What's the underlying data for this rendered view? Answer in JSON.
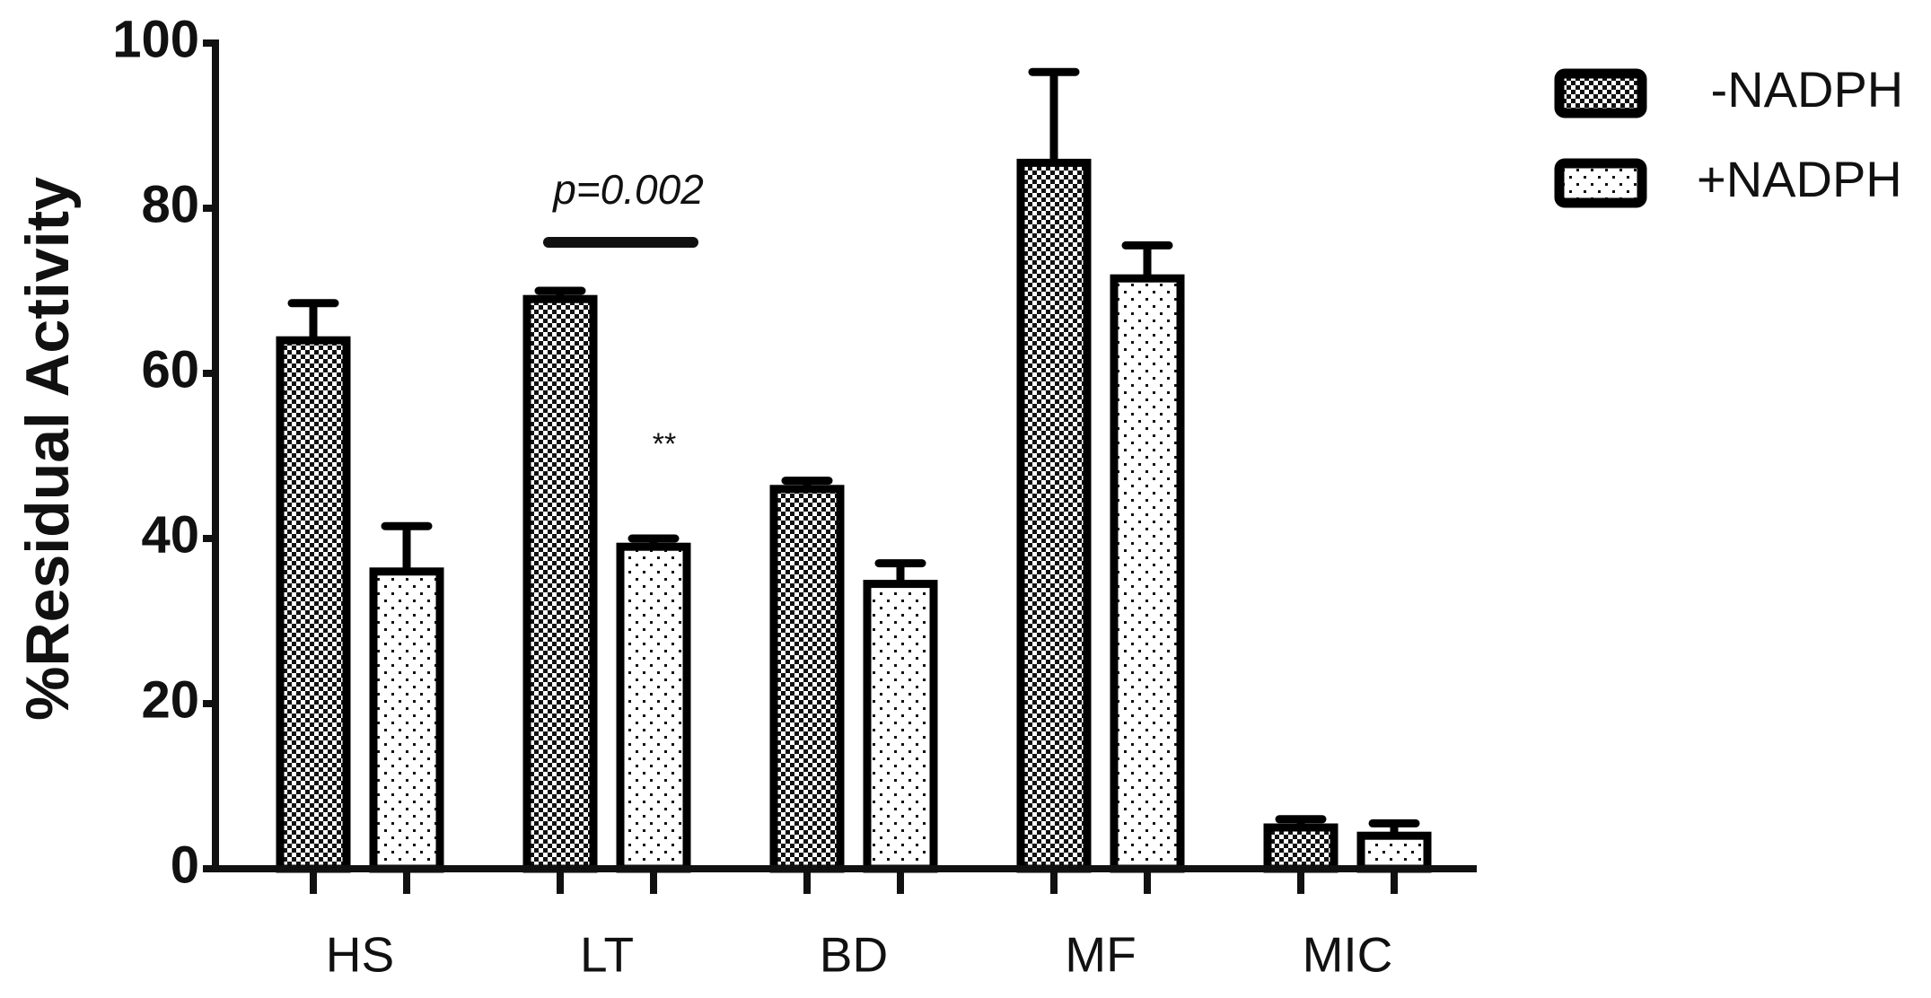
{
  "chart_data": {
    "type": "bar",
    "y_label": "%Residual Activity",
    "categories": [
      "HS",
      "LT",
      "BD",
      "MF",
      "MIC"
    ],
    "series": [
      {
        "name": " -NADPH",
        "color": "#000000",
        "pattern": "checkerboard",
        "values": [
          64,
          69,
          46,
          85.5,
          5
        ],
        "errors": [
          4.5,
          1,
          1,
          11,
          1
        ]
      },
      {
        "name": "+NADPH",
        "color": "#000000",
        "pattern": "dotted",
        "values": [
          36,
          39,
          34.5,
          71.5,
          4
        ],
        "errors": [
          5.5,
          1,
          2.5,
          4,
          1.5
        ]
      }
    ],
    "ylim": [
      0,
      100
    ],
    "yticks": [
      0,
      20,
      40,
      60,
      80,
      100
    ],
    "legend": "upper right",
    "annotations": [
      "p=0.002",
      "**"
    ]
  }
}
